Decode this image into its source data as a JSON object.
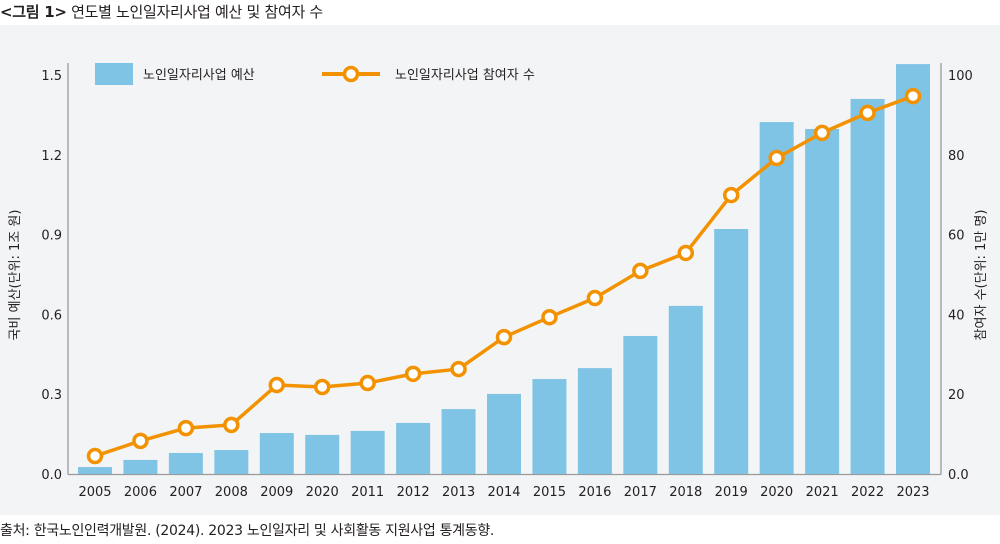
{
  "figure": {
    "label": "<그림 1>",
    "title": "연도별 노인일자리사업 예산 및 참여자 수",
    "source": "출처:  한국노인인력개발원. (2024).  2023 노인일자리 및 사회활동 지원사업 통계동향."
  },
  "colors": {
    "bar": "#7fc4e4",
    "line": "#f39200",
    "marker_fill": "#ffffff",
    "axis": "#9a9a9a",
    "background": "#f3f4f6"
  },
  "chart_data": {
    "type": "bar+line",
    "title": "연도별 노인일자리사업 예산 및 참여자 수",
    "categories": [
      "2005",
      "2006",
      "2007",
      "2008",
      "2009",
      "2020",
      "2011",
      "2012",
      "2013",
      "2014",
      "2015",
      "2016",
      "2017",
      "2018",
      "2019",
      "2020",
      "2021",
      "2022",
      "2023"
    ],
    "series": [
      {
        "name": "노인일자리사업 예산",
        "type": "bar",
        "axis": "left",
        "values": [
          0.026,
          0.053,
          0.079,
          0.09,
          0.154,
          0.147,
          0.162,
          0.192,
          0.244,
          0.301,
          0.357,
          0.398,
          0.519,
          0.632,
          0.921,
          1.323,
          1.297,
          1.41,
          1.541
        ]
      },
      {
        "name": "노인일자리사업 참여자 수",
        "type": "line",
        "axis": "right",
        "values": [
          4.5,
          8.3,
          11.5,
          12.3,
          22.3,
          21.8,
          22.8,
          25.1,
          26.3,
          34.3,
          39.3,
          44.1,
          50.9,
          55.4,
          69.9,
          79.2,
          85.5,
          90.5,
          94.7
        ]
      }
    ],
    "y_left": {
      "label": "국비 예산(단위: 1조 원)",
      "ylim": [
        0,
        1.5
      ],
      "ticks": [
        "0.0",
        "0.3",
        "0.6",
        "0.9",
        "1.2",
        "1.5"
      ]
    },
    "y_right": {
      "label": "참여자 수(단위: 1만 명)",
      "ylim": [
        0,
        100
      ],
      "ticks": [
        "0.0",
        "20",
        "40",
        "60",
        "80",
        "100"
      ]
    },
    "xlabel": "",
    "grid": false,
    "legend": {
      "placement": "top-left",
      "entries": [
        "노인일자리사업 예산",
        "노인일자리사업 참여자 수"
      ]
    }
  }
}
